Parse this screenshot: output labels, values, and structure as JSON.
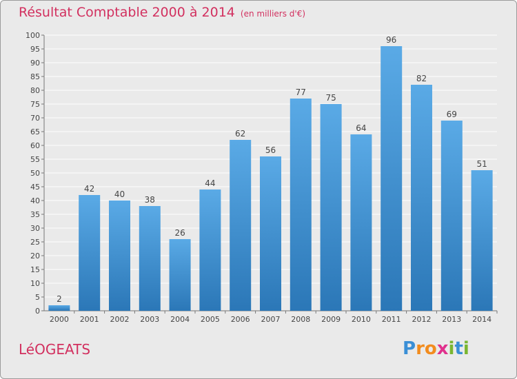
{
  "title": "Résultat Comptable 2000 à 2014",
  "unit_note": "(en milliers d'€)",
  "commune": "LéOGEATS",
  "logo": {
    "text": "Proxiti",
    "letters": [
      {
        "ch": "P",
        "color": "#3a8fd6"
      },
      {
        "ch": "r",
        "color": "#f28c1e"
      },
      {
        "ch": "o",
        "color": "#f28c1e"
      },
      {
        "ch": "x",
        "color": "#e0318d"
      },
      {
        "ch": "i",
        "color": "#7ab631"
      },
      {
        "ch": "t",
        "color": "#3a8fd6"
      },
      {
        "ch": "i",
        "color": "#7ab631"
      }
    ]
  },
  "colors": {
    "accent": "#d2305f",
    "bar_top": "#5aaae6",
    "bar_bottom": "#2b77b7",
    "grid": "#ffffff"
  },
  "chart_data": {
    "type": "bar",
    "title": "Résultat Comptable 2000 à 2014",
    "categories": [
      "2000",
      "2001",
      "2002",
      "2003",
      "2004",
      "2005",
      "2006",
      "2007",
      "2008",
      "2009",
      "2010",
      "2011",
      "2012",
      "2013",
      "2014"
    ],
    "values": [
      2,
      42,
      40,
      38,
      26,
      44,
      62,
      56,
      77,
      75,
      64,
      96,
      82,
      69,
      51
    ],
    "ylim": [
      0,
      100
    ],
    "ytick_step": 5,
    "grid": true
  }
}
